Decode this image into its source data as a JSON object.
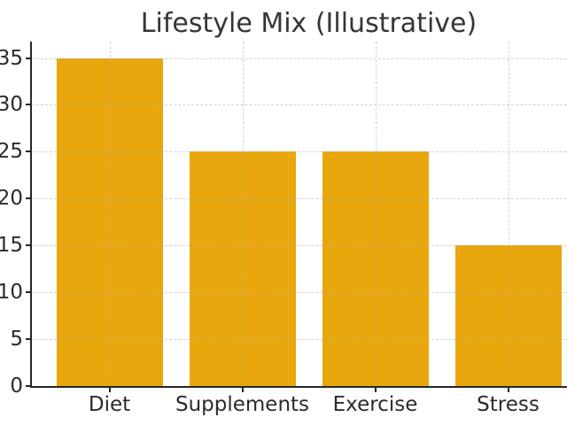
{
  "chart_data": {
    "type": "bar",
    "title": "Lifestyle Mix (Illustrative)",
    "categories": [
      "Diet",
      "Supplements",
      "Exercise",
      "Stress"
    ],
    "values": [
      35,
      25,
      25,
      15
    ],
    "xlabel": "",
    "ylabel": "",
    "ylim": [
      0,
      36.75
    ],
    "yticks": [
      0,
      5,
      10,
      15,
      20,
      25,
      30,
      35
    ],
    "legend": "none",
    "grid": "dashed horizontal and vertical gridlines, drawn above bars",
    "bar_color": "#E8A70C",
    "grid_color": "#cccccc",
    "axis_color": "#262626",
    "text_color": "#2b2b2b",
    "background_color": "#ffffff"
  }
}
